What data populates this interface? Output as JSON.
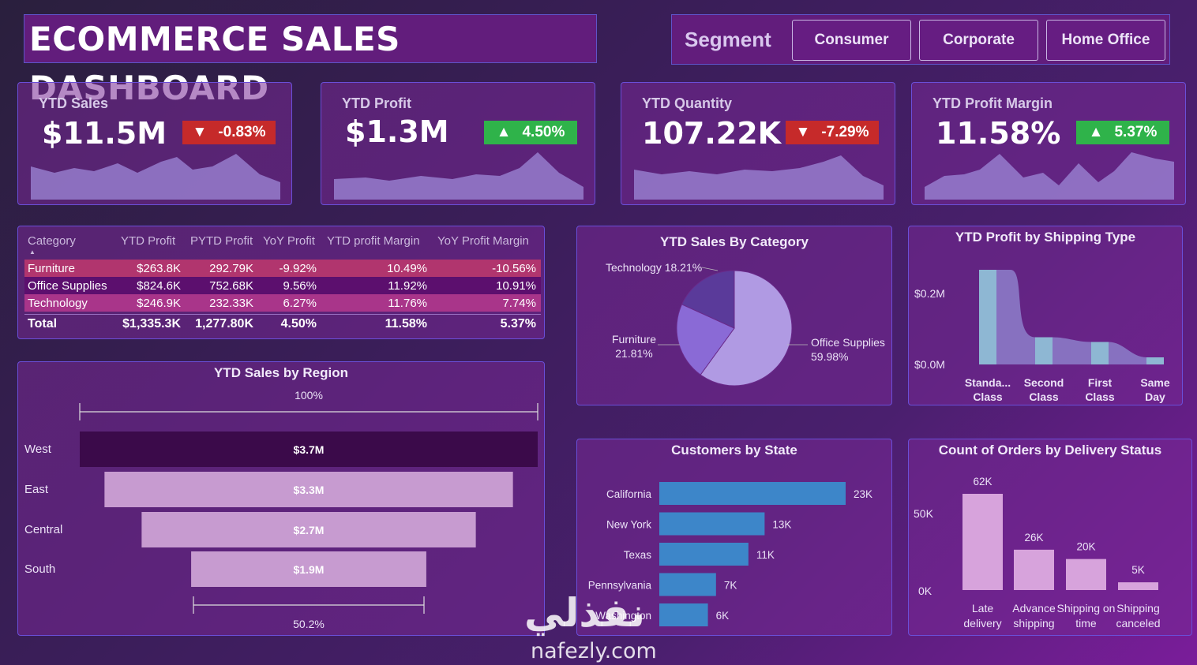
{
  "header": {
    "title": "ECOMMERCE SALES DASHBOARD"
  },
  "segment": {
    "label": "Segment",
    "options": [
      "Consumer",
      "Corporate",
      "Home Office"
    ]
  },
  "kpis": [
    {
      "title": "YTD Sales",
      "value": "$11.5M",
      "change": "-0.83%",
      "direction": "down"
    },
    {
      "title": "YTD Profit",
      "value": "$1.3M",
      "change": "4.50%",
      "direction": "up"
    },
    {
      "title": "YTD Quantity",
      "value": "107.22K",
      "change": "-7.29%",
      "direction": "down"
    },
    {
      "title": "YTD Profit Margin",
      "value": "11.58%",
      "change": "5.37%",
      "direction": "up"
    }
  ],
  "category_table": {
    "headers": [
      "Category",
      "YTD Profit",
      "PYTD Profit",
      "YoY Profit",
      "YTD profit Margin",
      "YoY Profit Margin"
    ],
    "rows": [
      [
        "Furniture",
        "$263.8K",
        "292.79K",
        "-9.92%",
        "10.49%",
        "-10.56%"
      ],
      [
        "Office Supplies",
        "$824.6K",
        "752.68K",
        "9.56%",
        "11.92%",
        "10.91%"
      ],
      [
        "Technology",
        "$246.9K",
        "232.33K",
        "6.27%",
        "11.76%",
        "7.74%"
      ]
    ],
    "total": [
      "Total",
      "$1,335.3K",
      "1,277.80K",
      "4.50%",
      "11.58%",
      "5.37%"
    ]
  },
  "charts": {
    "sales_by_region_title": "YTD Sales by Region",
    "sales_by_category_title": "YTD Sales By Category",
    "profit_by_shipping_title": "YTD Profit by Shipping Type",
    "customers_by_state_title": "Customers by State",
    "orders_by_delivery_title": "Count of Orders by Delivery Status",
    "funnel_top_label": "100%",
    "funnel_bottom_label": "50.2%"
  },
  "chart_data": [
    {
      "type": "bar",
      "title": "YTD Sales by Region",
      "categories": [
        "West",
        "East",
        "Central",
        "South"
      ],
      "values": [
        3.7,
        3.3,
        2.7,
        1.9
      ],
      "labels": [
        "$3.7M",
        "$3.3M",
        "$2.7M",
        "$1.9M"
      ],
      "colors": [
        "#3b0a4a",
        "#c79bd0",
        "#c79bd0",
        "#c79bd0"
      ]
    },
    {
      "type": "pie",
      "title": "YTD Sales By Category",
      "categories": [
        "Office Supplies",
        "Furniture",
        "Technology"
      ],
      "values": [
        59.98,
        21.81,
        18.21
      ],
      "labels": [
        "Office Supplies 59.98%",
        "Furniture 21.81%",
        "Technology 18.21%"
      ],
      "colors": [
        "#b09ae3",
        "#8a6ad6",
        "#5a3a9a"
      ]
    },
    {
      "type": "area",
      "title": "YTD Profit by Shipping Type",
      "categories": [
        "Standa...\nClass",
        "Second\nClass",
        "First\nClass",
        "Same\nDay"
      ],
      "values": [
        0.8,
        0.23,
        0.19,
        0.06
      ],
      "ytick_labels": [
        "$0.2M",
        "$0.0M"
      ]
    },
    {
      "type": "bar",
      "title": "Customers by State",
      "categories": [
        "California",
        "New York",
        "Texas",
        "Pennsylvania",
        "Washington"
      ],
      "values": [
        23,
        13,
        11,
        7,
        6
      ],
      "labels": [
        "23K",
        "13K",
        "11K",
        "7K",
        "6K"
      ]
    },
    {
      "type": "bar",
      "title": "Count of Orders by Delivery Status",
      "categories": [
        "Late delivery",
        "Advance shipping",
        "Shipping on time",
        "Shipping canceled"
      ],
      "values": [
        62,
        26,
        20,
        5
      ],
      "labels": [
        "62K",
        "26K",
        "20K",
        "5K"
      ],
      "ytick_labels": [
        "50K",
        "0K"
      ]
    }
  ],
  "watermark": {
    "arabic": "نفذلي",
    "latin": "nafezly.com"
  }
}
